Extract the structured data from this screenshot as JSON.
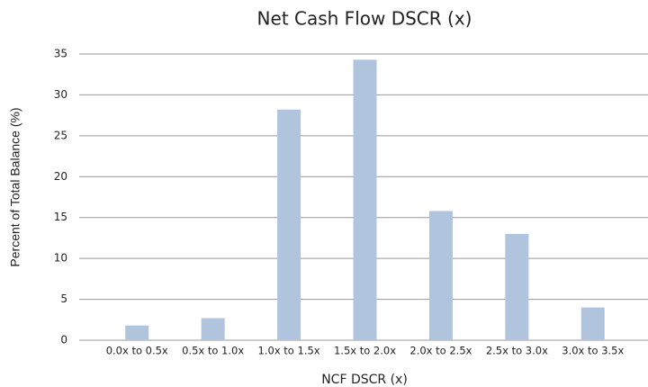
{
  "chart_data": {
    "type": "bar",
    "title": "Net Cash Flow DSCR (x)",
    "x_label": "NCF DSCR (x)",
    "y_label": "Percent of Total Balance (%)",
    "categories": [
      "0.0x to 0.5x",
      "0.5x to 1.0x",
      "1.0x to 1.5x",
      "1.5x to 2.0x",
      "2.0x to 2.5x",
      "2.5x to 3.0x",
      "3.0x to 3.5x"
    ],
    "values": [
      1.8,
      2.7,
      28.2,
      34.3,
      15.8,
      13.0,
      4.0
    ],
    "color": "#b0c4de",
    "ylim": [
      0,
      35
    ],
    "yticks": [
      0,
      5,
      10,
      15,
      20,
      25,
      30,
      35
    ],
    "grid": true
  }
}
